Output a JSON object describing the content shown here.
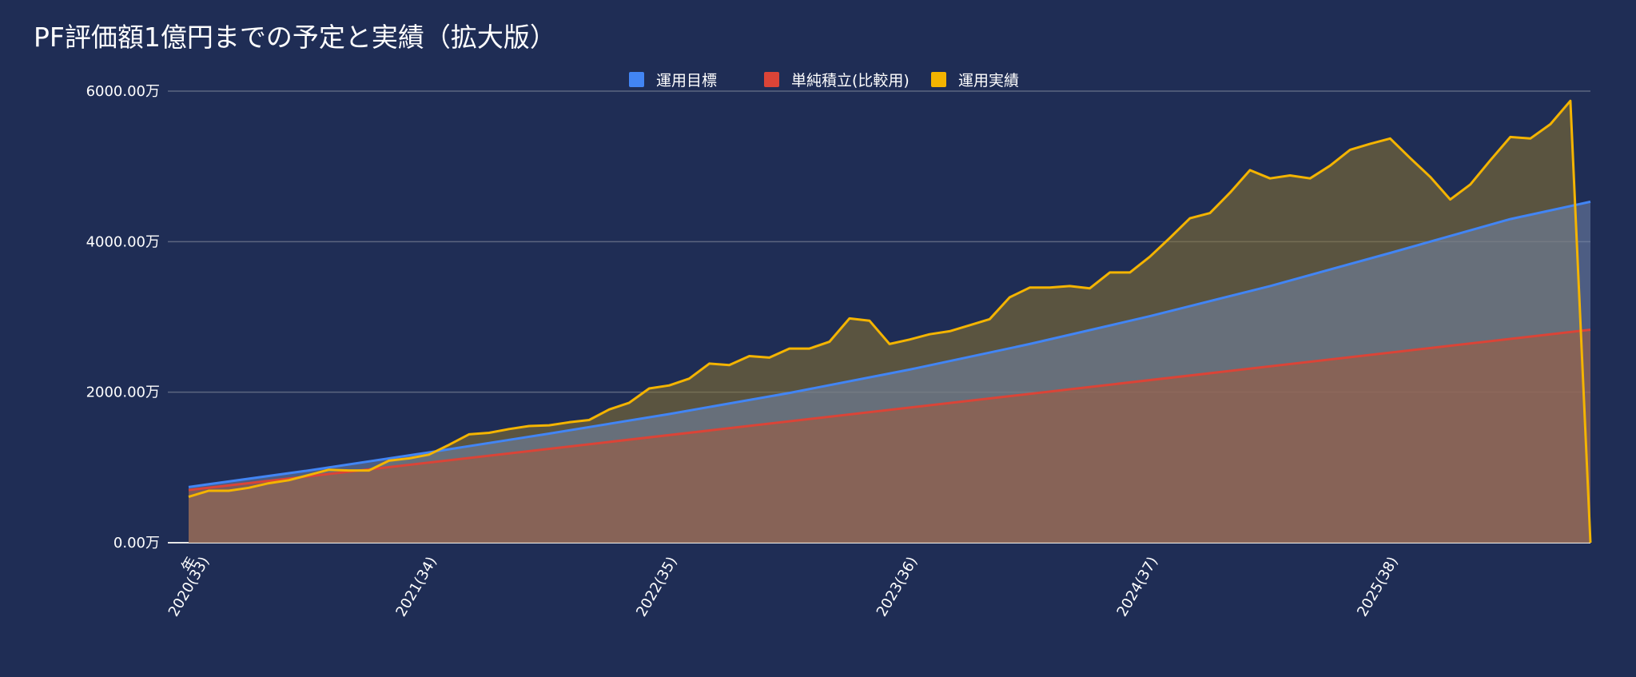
{
  "colors": {
    "background": "#1f2d55",
    "grid": "#5c6680",
    "text": "#ffffff"
  },
  "chart_data": {
    "type": "area",
    "title": "PF評価額1億円までの予定と実績（拡大版）",
    "legend_position": "top-center",
    "grid": true,
    "xlabel": "",
    "ylabel": "",
    "ylim": [
      0,
      6000
    ],
    "y_ticks": [
      0,
      2000,
      4000,
      6000
    ],
    "y_tick_labels": [
      "0.00万",
      "2000.00万",
      "4000.00万",
      "6000.00万"
    ],
    "x_range": [
      0,
      70
    ],
    "x_ticks": [
      {
        "label": "年",
        "extra": "2020(33)",
        "index": 0
      },
      {
        "label": "2021(34)",
        "index": 12
      },
      {
        "label": "2022(35)",
        "index": 24
      },
      {
        "label": "2023(36)",
        "index": 36
      },
      {
        "label": "2024(37)",
        "index": 48
      },
      {
        "label": "2025(38)",
        "index": 60
      }
    ],
    "series": [
      {
        "name": "単純積立(比較用)",
        "color": "#db4437",
        "fill": "#a35a3b",
        "x": [
          0,
          70
        ],
        "values": [
          700,
          2830
        ]
      },
      {
        "name": "運用目標",
        "color": "#4285f4",
        "fill": "#7285a9",
        "x": [
          0,
          6,
          12,
          18,
          24,
          30,
          36,
          42,
          48,
          54,
          60,
          66,
          70
        ],
        "values": [
          740,
          960,
          1200,
          1450,
          1710,
          1990,
          2300,
          2640,
          3010,
          3410,
          3850,
          4300,
          4530
        ]
      },
      {
        "name": "運用実績",
        "color": "#f4b400",
        "fill": "#8a7430",
        "x": [
          0,
          1,
          2,
          3,
          4,
          5,
          6,
          7,
          8,
          9,
          10,
          11,
          12,
          13,
          14,
          15,
          16,
          17,
          18,
          19,
          20,
          21,
          22,
          23,
          24,
          25,
          26,
          27,
          28,
          29,
          30,
          31,
          32,
          33,
          34,
          35,
          36,
          37,
          38,
          39,
          40,
          41,
          42,
          43,
          44,
          45,
          46,
          47,
          48,
          49,
          50,
          51,
          52,
          53,
          54,
          55,
          56,
          57,
          58,
          59,
          60,
          61,
          62,
          63,
          64,
          65,
          66,
          67,
          68,
          69,
          70
        ],
        "values": [
          610,
          690,
          690,
          730,
          790,
          830,
          900,
          970,
          960,
          960,
          1090,
          1120,
          1170,
          1300,
          1440,
          1460,
          1510,
          1550,
          1560,
          1600,
          1630,
          1770,
          1860,
          2050,
          2090,
          2180,
          2380,
          2360,
          2480,
          2460,
          2580,
          2580,
          2670,
          2980,
          2950,
          2640,
          2700,
          2770,
          2810,
          2890,
          2970,
          3260,
          3390,
          3390,
          3410,
          3380,
          3590,
          3590,
          3800,
          4050,
          4310,
          4380,
          4650,
          4950,
          4840,
          4880,
          4840,
          5010,
          5220,
          5300,
          5370,
          5110,
          4860,
          4560,
          4760,
          5080,
          5390,
          5370,
          5560,
          5870,
          0
        ]
      }
    ]
  }
}
